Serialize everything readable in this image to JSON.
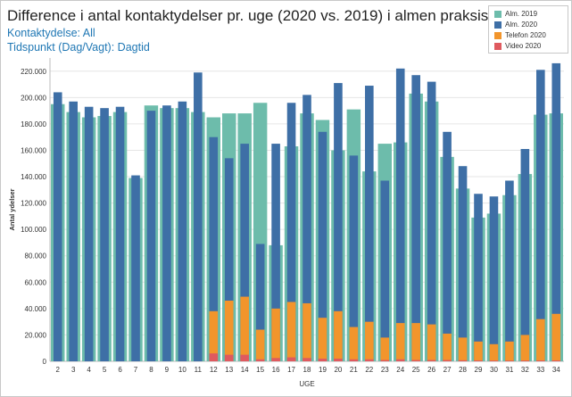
{
  "title": "Difference i antal kontaktydelser pr. uge (2020 vs. 2019) i almen praksis",
  "subtitle1": "Kontaktydelse: All",
  "subtitle2": "Tidspunkt (Dag/Vagt): Dagtid",
  "colors": {
    "alm2019": "#6dbcab",
    "alm2020": "#3e6fa6",
    "telefon2020": "#f2952c",
    "video2020": "#df5a5f"
  },
  "legend": [
    {
      "label": "Alm. 2019",
      "color_key": "alm2019"
    },
    {
      "label": "Alm. 2020",
      "color_key": "alm2020"
    },
    {
      "label": "Telefon 2020",
      "color_key": "telefon2020"
    },
    {
      "label": "Video 2020",
      "color_key": "video2020"
    }
  ],
  "chart_data": {
    "type": "bar",
    "xlabel": "UGE",
    "ylabel": "Antal ydelser",
    "ylim": [
      0,
      230000
    ],
    "yticks": [
      0,
      20000,
      40000,
      60000,
      80000,
      100000,
      120000,
      140000,
      160000,
      180000,
      200000,
      220000
    ],
    "ytick_labels": [
      "0",
      "20.000",
      "40.000",
      "60.000",
      "80.000",
      "100.000",
      "120.000",
      "140.000",
      "160.000",
      "180.000",
      "200.000",
      "220.000"
    ],
    "categories": [
      "2",
      "3",
      "4",
      "5",
      "6",
      "7",
      "8",
      "9",
      "10",
      "11",
      "12",
      "13",
      "14",
      "15",
      "16",
      "17",
      "18",
      "19",
      "20",
      "21",
      "22",
      "23",
      "24",
      "25",
      "26",
      "27",
      "28",
      "29",
      "30",
      "31",
      "32",
      "33",
      "34"
    ],
    "series": [
      {
        "name": "Alm. 2019",
        "values": [
          195000,
          189000,
          185000,
          186000,
          189000,
          139000,
          194000,
          192000,
          192000,
          189000,
          185000,
          188000,
          188000,
          196000,
          88000,
          163000,
          188000,
          183000,
          160000,
          191000,
          144000,
          165000,
          166000,
          203000,
          197000,
          155000,
          131000,
          109000,
          112000,
          126000,
          142000,
          187000,
          188000
        ]
      },
      {
        "name": "Alm. 2020",
        "values": [
          204000,
          197000,
          193000,
          192000,
          193000,
          141000,
          190000,
          194000,
          197000,
          219000,
          170000,
          154000,
          165000,
          89000,
          165000,
          196000,
          202000,
          174000,
          211000,
          156000,
          209000,
          137000,
          222000,
          217000,
          212000,
          174000,
          148000,
          127000,
          125000,
          137000,
          161000,
          221000,
          226000
        ]
      },
      {
        "name": "Telefon 2020",
        "values": [
          0,
          0,
          0,
          0,
          0,
          0,
          0,
          0,
          0,
          0,
          38000,
          46000,
          49000,
          24000,
          40000,
          45000,
          44000,
          33000,
          38000,
          26000,
          30000,
          18000,
          29000,
          29000,
          28000,
          21000,
          18000,
          15000,
          13000,
          15000,
          20000,
          32000,
          36000
        ]
      },
      {
        "name": "Video 2020",
        "values": [
          0,
          0,
          0,
          0,
          0,
          0,
          0,
          0,
          0,
          0,
          6000,
          5000,
          5000,
          1500,
          2500,
          3000,
          2500,
          2000,
          2000,
          1500,
          1500,
          1000,
          1500,
          1000,
          1000,
          1000,
          800,
          700,
          600,
          600,
          600,
          700,
          700
        ]
      }
    ]
  }
}
